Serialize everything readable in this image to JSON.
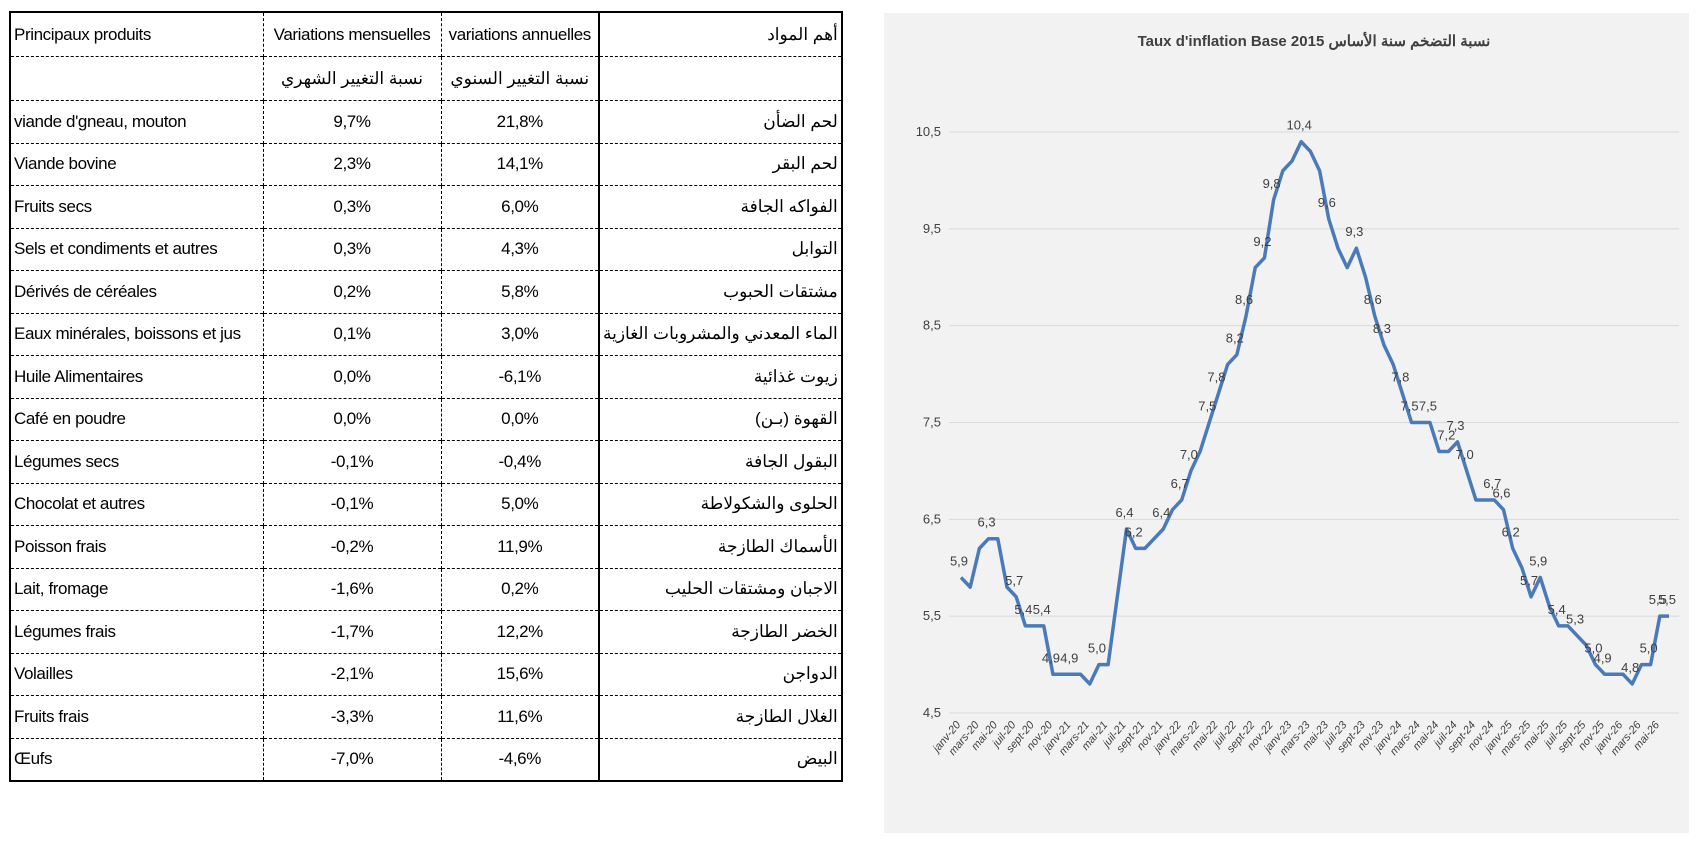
{
  "table": {
    "header": [
      "Principaux produits",
      "Variations mensuelles",
      "variations annuelles",
      "أهم المواد"
    ],
    "subheader": [
      "نسبة التغيير الشهري",
      "نسبة التغيير السنوي"
    ],
    "rows": [
      [
        "viande d'gneau, mouton",
        "9,7%",
        "21,8%",
        "لحم الضأن"
      ],
      [
        "Viande bovine",
        "2,3%",
        "14,1%",
        "لحم البقر"
      ],
      [
        "Fruits secs",
        "0,3%",
        "6,0%",
        "الفواكه الجافة"
      ],
      [
        "Sels et condiments et autres",
        "0,3%",
        "4,3%",
        "التوابل"
      ],
      [
        "Dérivés de céréales",
        "0,2%",
        "5,8%",
        "مشتقات الحبوب"
      ],
      [
        "Eaux minérales, boissons et jus",
        "0,1%",
        "3,0%",
        "الماء المعدني والمشروبات الغازية"
      ],
      [
        "Huile Alimentaires",
        "0,0%",
        "-6,1%",
        "زيوت غذائية"
      ],
      [
        "Café en poudre",
        "0,0%",
        "0,0%",
        "القهوة (بـن)"
      ],
      [
        "Légumes secs",
        "-0,1%",
        "-0,4%",
        "البقول الجافة"
      ],
      [
        "Chocolat et autres",
        "-0,1%",
        "5,0%",
        "الحلوى والشكولاطة"
      ],
      [
        "Poisson frais",
        "-0,2%",
        "11,9%",
        "الأسماك الطازجة"
      ],
      [
        "Lait, fromage",
        "-1,6%",
        "0,2%",
        "الاجبان ومشتقات الحليب"
      ],
      [
        "Légumes frais",
        "-1,7%",
        "12,2%",
        "الخضر الطازجة"
      ],
      [
        "Volailles",
        "-2,1%",
        "15,6%",
        "الدواجن"
      ],
      [
        "Fruits frais",
        "-3,3%",
        "11,6%",
        "الغلال الطازجة"
      ],
      [
        "Œufs",
        "-7,0%",
        "-4,6%",
        "البيض"
      ]
    ]
  },
  "chart_data": {
    "type": "line",
    "title": "Taux d'inflation Base  2015 نسبة التضخم سنة الأساس",
    "color": "#4a7ab8",
    "grid": true,
    "categories": [
      "janv-20",
      null,
      "mars-20",
      null,
      "mai-20",
      null,
      "juil-20",
      null,
      "sept-20",
      null,
      "nov-20",
      null,
      "janv-21",
      null,
      "mars-21",
      null,
      "mai-21",
      null,
      "juil-21",
      null,
      "sept-21",
      null,
      "nov-21",
      null,
      "janv-22",
      null,
      "mars-22",
      null,
      "mai-22",
      null,
      "juil-22",
      null,
      "sept-22",
      null,
      "nov-22",
      null,
      "janv-23",
      null,
      "mars-23",
      null,
      "mai-23",
      null,
      "juil-23",
      null,
      "sept-23",
      null,
      "nov-23",
      null,
      "janv-24",
      null,
      "mars-24",
      null,
      "mai-24",
      null,
      "juil-24",
      null,
      "sept-24",
      null,
      "nov-24",
      null,
      "janv-25",
      null,
      "mars-25",
      null,
      "mai-25",
      null,
      "juil-25",
      null,
      "sept-25",
      null,
      "nov-25",
      null,
      "janv-26",
      null,
      "mars-26",
      null,
      "mai-26",
      null
    ],
    "values": [
      5.9,
      5.8,
      6.2,
      6.3,
      6.3,
      5.8,
      5.7,
      5.4,
      5.4,
      5.4,
      4.9,
      4.9,
      4.9,
      4.9,
      4.8,
      5.0,
      5.0,
      5.7,
      6.4,
      6.2,
      6.2,
      6.3,
      6.4,
      6.6,
      6.7,
      7.0,
      7.2,
      7.5,
      7.8,
      8.1,
      8.2,
      8.6,
      9.1,
      9.2,
      9.8,
      10.1,
      10.2,
      10.4,
      10.3,
      10.1,
      9.6,
      9.3,
      9.1,
      9.3,
      9.0,
      8.6,
      8.3,
      8.1,
      7.8,
      7.5,
      7.5,
      7.5,
      7.2,
      7.2,
      7.3,
      7.0,
      6.7,
      6.7,
      6.7,
      6.6,
      6.2,
      6.0,
      5.7,
      5.9,
      5.6,
      5.4,
      5.4,
      5.3,
      5.2,
      5.0,
      4.9,
      4.9,
      4.9,
      4.8,
      5.0,
      5.0,
      5.5,
      5.5
    ],
    "value_labels": [
      "5,9",
      null,
      null,
      "6,3",
      null,
      null,
      "5,7",
      "5,4",
      null,
      "5,4",
      "4,9",
      null,
      "4,9",
      null,
      null,
      "5,0",
      null,
      null,
      "6,4",
      "6,2",
      null,
      null,
      "6,4",
      null,
      "6,7",
      "7,0",
      null,
      "7,5",
      "7,8",
      null,
      "8,2",
      "8,6",
      null,
      "9,2",
      "9,8",
      null,
      null,
      "10,4",
      null,
      null,
      "9,6",
      null,
      null,
      "9,3",
      null,
      "8,6",
      "8,3",
      null,
      "7,8",
      "7,5",
      null,
      "7,5",
      null,
      "7,2",
      "7,3",
      "7,0",
      null,
      null,
      "6,7",
      "6,6",
      "6,2",
      null,
      "5,7",
      "5,9",
      null,
      "5,4",
      null,
      "5,3",
      null,
      "5,0",
      "4,9",
      null,
      null,
      "4,8",
      null,
      "5,0",
      "5,5",
      "5,5"
    ],
    "ylim": [
      4.5,
      10.5
    ],
    "yticks": [
      {
        "value": 4.5,
        "label": "4,5"
      },
      {
        "value": 5.5,
        "label": "5,5"
      },
      {
        "value": 6.5,
        "label": "6,5"
      },
      {
        "value": 7.5,
        "label": "7,5"
      },
      {
        "value": 8.5,
        "label": "8,5"
      },
      {
        "value": 9.5,
        "label": "9,5"
      },
      {
        "value": 10.5,
        "label": "10,5"
      }
    ]
  }
}
